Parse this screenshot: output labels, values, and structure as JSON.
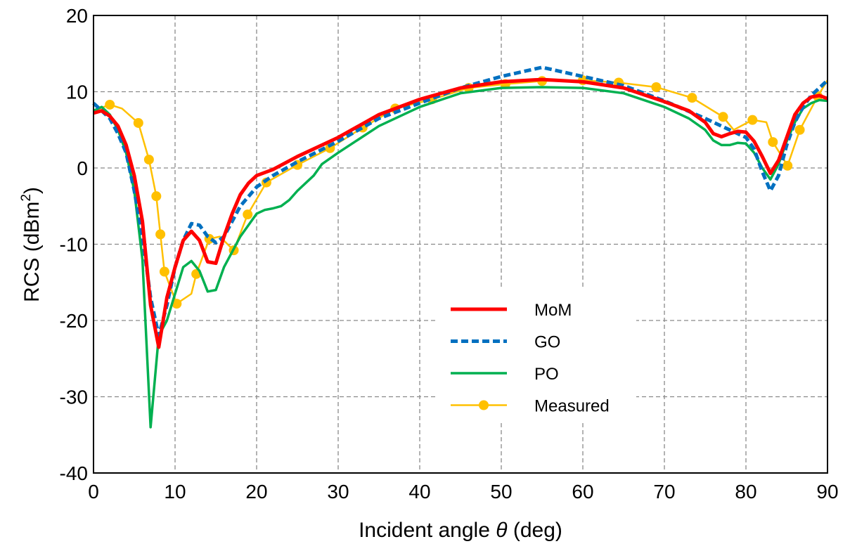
{
  "chart_data": {
    "type": "line",
    "title": "",
    "xlabel_prefix": "Incident angle ",
    "xlabel_symbol": "θ",
    "xlabel_suffix": " (deg)",
    "ylabel": "RCS (dBm",
    "ylabel_sup": "2",
    "ylabel_end": ")",
    "xlim": [
      0,
      90
    ],
    "ylim": [
      -40,
      20
    ],
    "xticks": [
      0,
      10,
      20,
      30,
      40,
      50,
      60,
      70,
      80,
      90
    ],
    "yticks": [
      -40,
      -30,
      -20,
      -10,
      0,
      10,
      20
    ],
    "grid": true,
    "legend_position": "lower-center",
    "series": [
      {
        "name": "MoM",
        "color": "#ff0000",
        "style": "solid-thick",
        "x": [
          0,
          1,
          2,
          3,
          4,
          5,
          6,
          7,
          8,
          9,
          10,
          11,
          12,
          13,
          14,
          15,
          16,
          17,
          18,
          19,
          20,
          22,
          25,
          30,
          35,
          40,
          45,
          50,
          55,
          60,
          65,
          70,
          73,
          75,
          76,
          77,
          78,
          79,
          80,
          81,
          82,
          83,
          84,
          85,
          86,
          87,
          88,
          89,
          90
        ],
        "y": [
          7.2,
          7.5,
          6.8,
          5.5,
          3,
          -1,
          -7,
          -18,
          -23.5,
          -17,
          -13,
          -9.5,
          -8.3,
          -9.5,
          -12.3,
          -12.5,
          -9,
          -6,
          -3.5,
          -2,
          -1,
          -0.2,
          1.5,
          4,
          7,
          9,
          10.5,
          11.3,
          11.6,
          11.3,
          10.5,
          8.7,
          7.5,
          6,
          4.5,
          4.1,
          4.5,
          4.8,
          4.7,
          3.5,
          1.5,
          -0.7,
          1,
          4,
          7,
          8.5,
          9.3,
          9.5,
          9.1
        ]
      },
      {
        "name": "GO",
        "color": "#0070c0",
        "style": "dashed",
        "x": [
          0,
          1,
          2,
          3,
          4,
          5,
          6,
          7,
          8,
          9,
          10,
          11,
          12,
          13,
          14,
          15,
          16,
          18,
          20,
          22,
          25,
          30,
          35,
          40,
          45,
          50,
          55,
          60,
          65,
          70,
          75,
          78,
          80,
          81,
          82,
          83,
          84,
          85,
          86,
          87,
          88,
          89,
          90
        ],
        "y": [
          8.5,
          7.5,
          6.5,
          4.5,
          2,
          -3,
          -9,
          -17,
          -22,
          -18,
          -13,
          -9.5,
          -7.3,
          -7.5,
          -9,
          -9.8,
          -9,
          -5,
          -2.5,
          -1,
          0.8,
          3.5,
          6.5,
          8.5,
          10.5,
          12,
          13.2,
          12,
          10.8,
          8.8,
          6.5,
          5,
          4,
          2.5,
          -0.5,
          -3,
          -1,
          3,
          6,
          8,
          9.5,
          10.5,
          11.5
        ]
      },
      {
        "name": "PO",
        "color": "#00b050",
        "style": "solid",
        "x": [
          0,
          1,
          2,
          3,
          4,
          5,
          6,
          7,
          8,
          9,
          10,
          11,
          12,
          13,
          14,
          15,
          16,
          17,
          18,
          19,
          20,
          21,
          22,
          23,
          24,
          25,
          27,
          28,
          30,
          35,
          40,
          45,
          50,
          55,
          60,
          65,
          70,
          73,
          75,
          76,
          77,
          78,
          79,
          80,
          81,
          82,
          83,
          84,
          85,
          86,
          87,
          88,
          89,
          90
        ],
        "y": [
          7.5,
          8,
          7,
          5,
          2,
          -3,
          -12,
          -34,
          -22,
          -20,
          -16.5,
          -13,
          -12.2,
          -13.5,
          -16.2,
          -16,
          -13,
          -11,
          -9,
          -7.5,
          -6,
          -5.5,
          -5.3,
          -5,
          -4.2,
          -3,
          -1,
          0.5,
          2,
          5.5,
          8,
          9.8,
          10.5,
          10.6,
          10.5,
          9.8,
          8,
          6.5,
          5,
          3.6,
          3,
          3,
          3.3,
          3.2,
          2,
          0,
          -1.5,
          0.5,
          3.5,
          6,
          7.8,
          8.5,
          8.9,
          8.8
        ]
      },
      {
        "name": "Measured",
        "color": "#ffc000",
        "style": "line-marker",
        "x": [
          0,
          2,
          3.5,
          5.5,
          6.8,
          7.7,
          8.2,
          8.7,
          10.2,
          12,
          12.6,
          14.2,
          15.5,
          17.2,
          18.9,
          21.2,
          25,
          29,
          33,
          37,
          41.5,
          46,
          50.5,
          55,
          60,
          64.4,
          69,
          73.4,
          77.2,
          78.5,
          80.8,
          82.5,
          83.3,
          85.1,
          86.6,
          88.8,
          90
        ],
        "y": [
          7.5,
          8.3,
          7.8,
          5.9,
          1.1,
          -3.7,
          -8.7,
          -13.6,
          -17.8,
          -16.5,
          -13.9,
          -9.3,
          -9,
          -10.8,
          -6.1,
          -1.9,
          0.4,
          2.6,
          5.3,
          7.8,
          9,
          10.5,
          11,
          11.4,
          11.5,
          11.2,
          10.6,
          9.2,
          6.7,
          5,
          6.3,
          6,
          3.4,
          0.3,
          5,
          9.4,
          11.5
        ],
        "markers": [
          false,
          true,
          false,
          true,
          true,
          true,
          true,
          true,
          true,
          false,
          true,
          true,
          false,
          true,
          true,
          true,
          true,
          true,
          true,
          true,
          true,
          true,
          true,
          true,
          true,
          true,
          true,
          true,
          true,
          false,
          true,
          false,
          true,
          true,
          true,
          true,
          false
        ]
      }
    ]
  }
}
